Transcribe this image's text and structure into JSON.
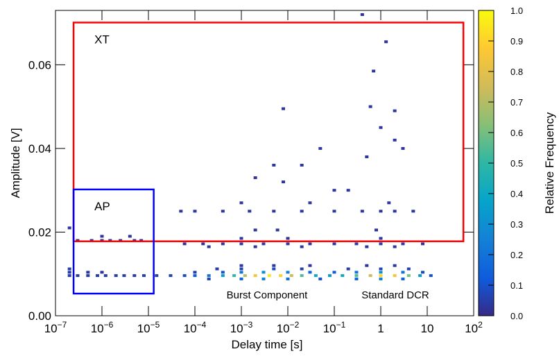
{
  "chart_data": {
    "type": "heatmap",
    "x_label": "Delay time [s]",
    "y_label": "Amplitude [V]",
    "z_label": "Relative Frequency",
    "xlim": [
      1e-07,
      100
    ],
    "xlog": true,
    "xticks": [
      {
        "value": 1e-07,
        "label": "10",
        "exponent": "−7"
      },
      {
        "value": 1e-06,
        "label": "10",
        "exponent": "−6"
      },
      {
        "value": 1e-05,
        "label": "10",
        "exponent": "−5"
      },
      {
        "value": 0.0001,
        "label": "10",
        "exponent": "−4"
      },
      {
        "value": 0.001,
        "label": "10",
        "exponent": "−3"
      },
      {
        "value": 0.01,
        "label": "10",
        "exponent": "−2"
      },
      {
        "value": 0.1,
        "label": "10",
        "exponent": "−1"
      },
      1,
      10,
      {
        "value": 100,
        "label": "10",
        "exponent": "2"
      }
    ],
    "ylim": [
      0,
      0.073
    ],
    "yticks": [
      {
        "value": 0,
        "label": "0.00"
      },
      0.02,
      0.04,
      0.06
    ],
    "zlim": [
      0,
      1
    ],
    "zticks": [
      {
        "value": 0,
        "label": "0.0"
      },
      0.1,
      0.2,
      0.3,
      0.4,
      0.5,
      0.6,
      0.7,
      0.8,
      0.9,
      {
        "value": 1,
        "label": "1.0"
      }
    ],
    "colors": [
      "#352a87",
      "#0f5cdd",
      "#1481d6",
      "#06a4ca",
      "#2eb7a4",
      "#87bf77",
      "#d1bb59",
      "#fec832",
      "#f9fb0e"
    ],
    "regions": [
      {
        "name": "XT",
        "color": "#ff0000",
        "xlim": [
          2.45e-07,
          60
        ],
        "ylim": [
          0.0178,
          0.0701
        ]
      },
      {
        "name": "AP",
        "color": "#0000ff",
        "xlim": [
          2.45e-07,
          1.3e-05
        ],
        "ylim": [
          0.0053,
          0.0302
        ]
      }
    ],
    "annotations": [
      "Burst Component",
      "Standard DCR"
    ],
    "cells": {
      "x": [
        2e-07,
        3e-07,
        5e-07,
        8e-07,
        1.2e-06,
        2e-06,
        3e-06,
        5e-06,
        8e-06,
        1.5e-05,
        3e-05,
        6e-05,
        0.0001,
        0.0002,
        0.0004,
        0.0007,
        0.0012,
        0.002,
        0.004,
        0.007,
        0.012,
        0.02,
        0.04,
        0.08,
        0.15,
        0.3,
        0.6,
        1,
        2,
        4,
        7,
        12,
        2e-07,
        5e-07,
        1e-06,
        0.0001,
        0.0004,
        0.001,
        0.003,
        0.01,
        0.03,
        0.1,
        0.3,
        1,
        3,
        8,
        0.0002,
        0.001,
        0.003,
        0.01,
        0.05,
        0.3,
        1,
        3,
        2e-07,
        0.0003,
        0.001,
        0.005,
        0.02,
        0.2,
        1,
        4,
        0.001,
        0.005,
        0.03,
        0.5,
        2,
        6e-05,
        0.00015,
        0.0004,
        0.001,
        0.003,
        0.01,
        0.03,
        0.1,
        0.3,
        1,
        3,
        8,
        0.0002,
        0.002,
        0.02,
        0.5,
        2,
        0.001,
        0.01,
        1,
        0.002,
        0.006,
        0.8,
        5e-05,
        0.0001,
        0.0004,
        0.0015,
        0.005,
        0.02,
        0.1,
        0.4,
        1,
        2,
        5,
        0.001,
        0.03,
        1.5,
        3e-07,
        6e-07,
        1e-06,
        1.5e-06,
        2.5e-06,
        5e-06,
        7e-06,
        1e-06,
        4e-06,
        2e-07,
        0.002,
        0.008,
        0.02,
        0.005,
        0.2,
        0.05,
        0.008,
        0.6,
        2,
        0.7,
        1.3,
        0.4,
        1,
        2,
        3,
        0.5,
        0.1
      ],
      "y": [
        0.0096,
        0.0096,
        0.0096,
        0.0096,
        0.0096,
        0.0096,
        0.0096,
        0.0096,
        0.0096,
        0.0096,
        0.0096,
        0.0096,
        0.0096,
        0.0096,
        0.0096,
        0.0096,
        0.0096,
        0.0096,
        0.0096,
        0.0096,
        0.0096,
        0.0096,
        0.0096,
        0.0096,
        0.0096,
        0.0096,
        0.0096,
        0.0096,
        0.0096,
        0.0096,
        0.0096,
        0.0096,
        0.0104,
        0.0104,
        0.0104,
        0.0104,
        0.0104,
        0.0104,
        0.0104,
        0.0104,
        0.0104,
        0.0104,
        0.0104,
        0.0104,
        0.0104,
        0.0104,
        0.0088,
        0.0088,
        0.0088,
        0.0088,
        0.0088,
        0.0088,
        0.0088,
        0.0088,
        0.0112,
        0.0112,
        0.0112,
        0.0112,
        0.0112,
        0.0112,
        0.0112,
        0.0112,
        0.012,
        0.012,
        0.012,
        0.012,
        0.012,
        0.0172,
        0.0172,
        0.0172,
        0.0172,
        0.0172,
        0.0172,
        0.0172,
        0.0172,
        0.0172,
        0.0172,
        0.0172,
        0.0172,
        0.0165,
        0.0165,
        0.0165,
        0.0165,
        0.0165,
        0.0185,
        0.0185,
        0.0185,
        0.0205,
        0.0205,
        0.0205,
        0.025,
        0.025,
        0.025,
        0.025,
        0.025,
        0.025,
        0.025,
        0.025,
        0.025,
        0.025,
        0.025,
        0.027,
        0.027,
        0.027,
        0.018,
        0.018,
        0.018,
        0.018,
        0.018,
        0.018,
        0.018,
        0.019,
        0.019,
        0.021,
        0.033,
        0.032,
        0.036,
        0.036,
        0.03,
        0.04,
        0.0495,
        0.05,
        0.049,
        0.0585,
        0.0655,
        0.072,
        0.045,
        0.042,
        0.04,
        0.038,
        0.03
      ],
      "z": [
        0.05,
        0.04,
        0.04,
        0.05,
        0.04,
        0.05,
        0.05,
        0.04,
        0.05,
        0.05,
        0.06,
        0.08,
        0.12,
        0.2,
        0.35,
        0.5,
        0.7,
        0.85,
        0.95,
        0.9,
        0.75,
        0.55,
        0.4,
        0.35,
        0.4,
        0.55,
        0.75,
        0.9,
        0.85,
        0.6,
        0.35,
        0.1,
        0.04,
        0.03,
        0.03,
        0.05,
        0.1,
        0.2,
        0.3,
        0.25,
        0.15,
        0.12,
        0.2,
        0.3,
        0.2,
        0.08,
        0.06,
        0.15,
        0.25,
        0.2,
        0.1,
        0.15,
        0.25,
        0.15,
        0.05,
        0.04,
        0.06,
        0.08,
        0.05,
        0.05,
        0.07,
        0.05,
        0.03,
        0.04,
        0.03,
        0.03,
        0.04,
        0.03,
        0.03,
        0.04,
        0.05,
        0.05,
        0.05,
        0.04,
        0.04,
        0.05,
        0.06,
        0.05,
        0.03,
        0.03,
        0.03,
        0.03,
        0.03,
        0.03,
        0.03,
        0.03,
        0.03,
        0.03,
        0.03,
        0.03,
        0.03,
        0.03,
        0.03,
        0.03,
        0.03,
        0.03,
        0.03,
        0.03,
        0.03,
        0.03,
        0.03,
        0.03,
        0.03,
        0.03,
        0.03,
        0.03,
        0.03,
        0.03,
        0.03,
        0.03,
        0.03,
        0.03,
        0.03,
        0.03,
        0.03,
        0.03,
        0.03,
        0.03,
        0.03,
        0.03,
        0.03,
        0.03,
        0.03,
        0.03,
        0.03,
        0.03,
        0.03,
        0.03,
        0.03,
        0.03,
        0.03
      ]
    }
  }
}
